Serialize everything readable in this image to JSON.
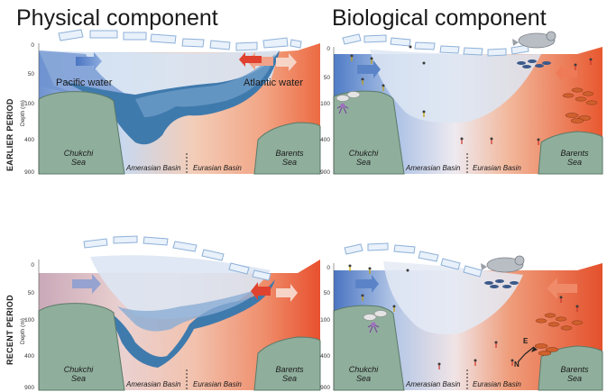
{
  "titles": {
    "physical": "Physical component",
    "biological": "Biological component"
  },
  "periods": {
    "earlier": "EARLIER PERIOD",
    "recent": "RECENT PERIOD"
  },
  "axis": {
    "label": "Depth (m)",
    "ticks": [
      "0",
      "50",
      "100",
      "400",
      "900"
    ]
  },
  "labels": {
    "pacific": "Pacific water",
    "atlantic": "Atlantic water",
    "chukchi_1": "Chukchi",
    "chukchi_2": "Sea",
    "barents_1": "Barents",
    "barents_2": "Sea",
    "amerasian": "Amerasian Basin",
    "eurasian": "Eurasian Basin"
  },
  "compass": {
    "east": "E",
    "north": "N"
  },
  "colors": {
    "pacific": "#5b84c8",
    "atlantic": "#e8552f",
    "land": "#8fae9c",
    "ice": "#dde9f7"
  }
}
